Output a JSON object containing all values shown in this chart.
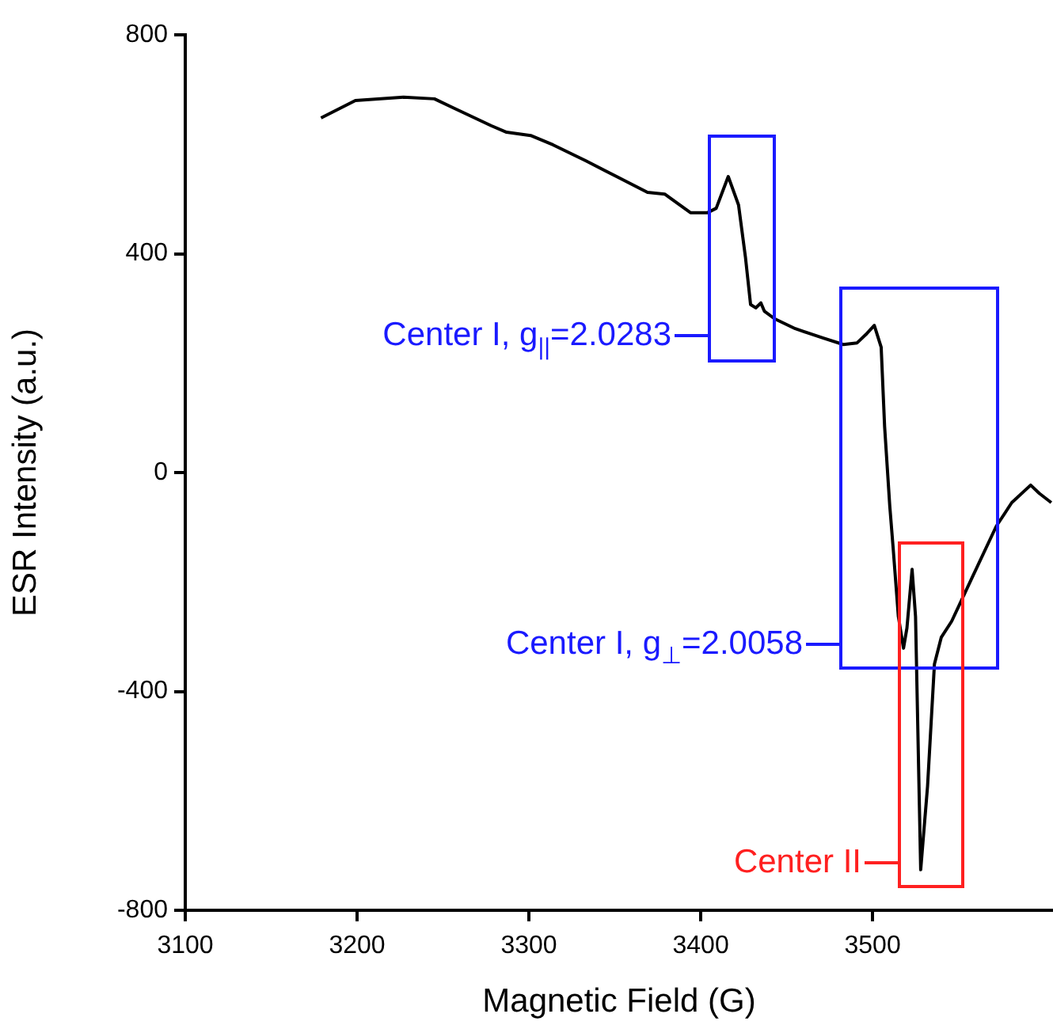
{
  "chart_data": {
    "type": "line",
    "xlabel": "Magnetic Field (G)",
    "ylabel": "ESR Intensity (a.u.)",
    "xlim": [
      3100,
      3605
    ],
    "xticks": [
      3100,
      3200,
      3300,
      3400,
      3500
    ],
    "ylim": [
      -800,
      800
    ],
    "yticks": [
      -800,
      -400,
      0,
      400,
      800
    ],
    "grid": false,
    "legend": false,
    "marker": "none",
    "line_style": "solid",
    "series": [
      {
        "color": "#000000",
        "x": [
          3179,
          3199,
          3227,
          3245,
          3255,
          3278,
          3287,
          3301,
          3314,
          3333,
          3351,
          3369,
          3379,
          3394,
          3404,
          3409,
          3416,
          3422,
          3426,
          3429,
          3432,
          3435,
          3437,
          3443,
          3455,
          3471,
          3483,
          3491,
          3496,
          3501,
          3505,
          3507,
          3510,
          3512,
          3515,
          3518,
          3520,
          3523,
          3525,
          3528,
          3532,
          3536,
          3540,
          3546,
          3556,
          3572,
          3581,
          3592,
          3597,
          3604
        ],
        "values": [
          648,
          680,
          686,
          683,
          668,
          634,
          622,
          616,
          599,
          570,
          541,
          512,
          509,
          475,
          475,
          483,
          541,
          489,
          394,
          307,
          301,
          310,
          295,
          281,
          263,
          246,
          234,
          237,
          252,
          269,
          229,
          84,
          -61,
          -139,
          -263,
          -321,
          -284,
          -177,
          -263,
          -726,
          -573,
          -350,
          -301,
          -272,
          -205,
          -98,
          -55,
          -23,
          -38,
          -55
        ]
      }
    ],
    "annotations": [
      "Center I, g$_{||}$=2.0283",
      "Center I, g$_{⊥}$=2.0058",
      "Center II"
    ]
  }
}
